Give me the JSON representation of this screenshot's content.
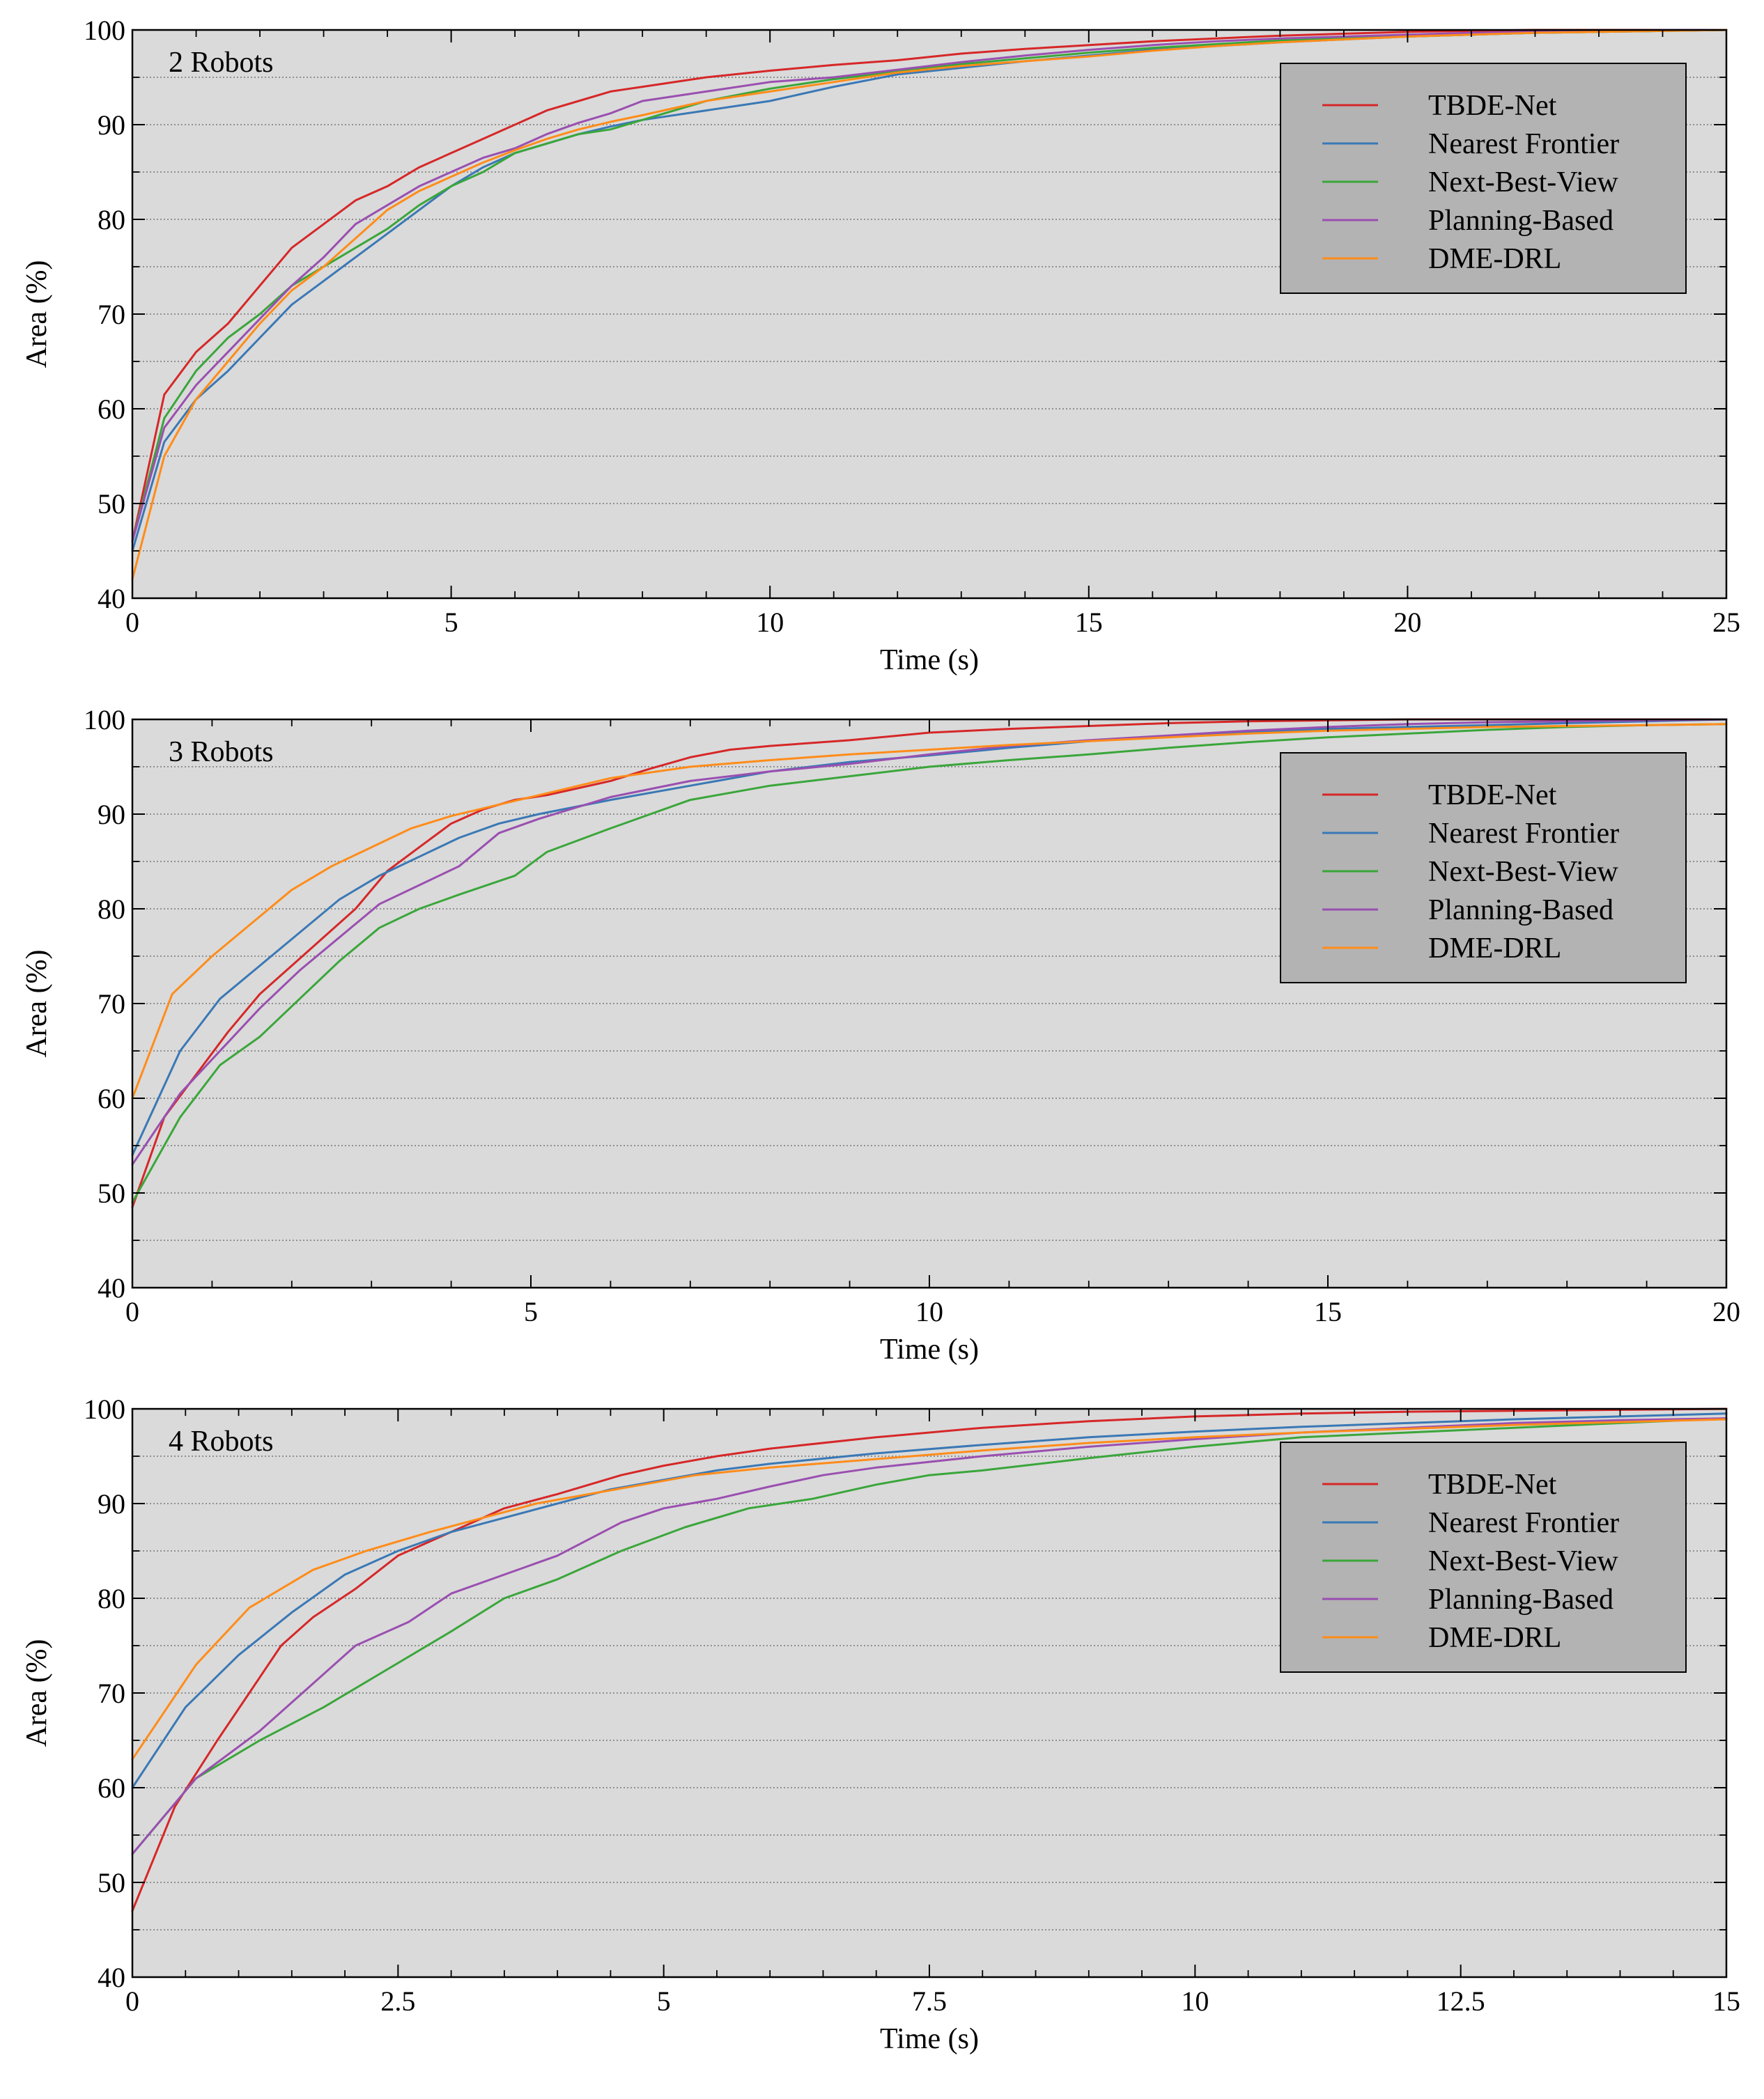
{
  "colors": {
    "TBDE-Net": "#d62728",
    "Nearest Frontier": "#3a78b5",
    "Next-Best-View": "#3aa63a",
    "Planning-Based": "#9a4fb0",
    "DME-DRL": "#ff8c1a",
    "plot_background": "#dadada",
    "legend_background": "#b3b3b3"
  },
  "chart_data": [
    {
      "type": "line",
      "title": "2 Robots",
      "xlabel": "Time (s)",
      "ylabel": "Area (%)",
      "xlim": [
        0,
        25
      ],
      "ylim": [
        40,
        100
      ],
      "xticks": [
        0,
        5,
        10,
        15,
        20,
        25
      ],
      "xtick_labels": [
        "0",
        "5",
        "10",
        "15",
        "20",
        "25"
      ],
      "yticks": [
        40,
        50,
        60,
        70,
        80,
        90,
        100
      ],
      "ytick_labels": [
        "40",
        "50",
        "60",
        "70",
        "80",
        "90",
        "100"
      ],
      "x_minor_step": 1,
      "y_minor_step": 5,
      "grid": "horizontal dotted",
      "legend_position": "top-right",
      "series": [
        {
          "name": "TBDE-Net",
          "x": [
            0,
            0.5,
            1,
            1.5,
            2,
            2.5,
            3,
            3.5,
            4,
            4.5,
            5,
            5.5,
            6,
            6.5,
            7,
            7.5,
            8,
            9,
            10,
            11,
            12,
            13,
            14,
            15,
            16,
            17,
            18,
            19,
            20,
            21,
            22,
            23,
            24,
            25
          ],
          "y": [
            46,
            61.5,
            66,
            69,
            73,
            77,
            79.5,
            82,
            83.5,
            85.5,
            87,
            88.5,
            90,
            91.5,
            92.5,
            93.5,
            94,
            95,
            95.7,
            96.3,
            96.8,
            97.5,
            98,
            98.4,
            98.8,
            99.1,
            99.4,
            99.6,
            99.8,
            99.9,
            100,
            100,
            100,
            100
          ]
        },
        {
          "name": "Nearest Frontier",
          "x": [
            0,
            0.5,
            1,
            1.5,
            2,
            2.5,
            3,
            3.5,
            4,
            4.5,
            5,
            5.5,
            6,
            6.5,
            7,
            7.5,
            8,
            9,
            10,
            11,
            12,
            13,
            14,
            15,
            16,
            17,
            18,
            19,
            20,
            21,
            22,
            23,
            24,
            25
          ],
          "y": [
            45,
            56.5,
            61,
            64,
            67.5,
            71,
            73.5,
            76,
            78.5,
            81,
            83.5,
            85.5,
            87,
            88,
            89,
            89.8,
            90.5,
            91.5,
            92.5,
            94,
            95.3,
            96,
            96.7,
            97.3,
            97.9,
            98.3,
            98.7,
            99,
            99.3,
            99.5,
            99.7,
            99.8,
            99.9,
            100
          ]
        },
        {
          "name": "Next-Best-View",
          "x": [
            0,
            0.5,
            1,
            1.5,
            2,
            2.5,
            3,
            3.5,
            4,
            4.5,
            5,
            5.5,
            6,
            6.5,
            7,
            7.5,
            8,
            9,
            10,
            11,
            12,
            13,
            14,
            15,
            16,
            17,
            18,
            19,
            20,
            21,
            22,
            23,
            24,
            25
          ],
          "y": [
            46,
            59,
            64,
            67.5,
            70,
            73,
            75,
            77,
            79,
            81.5,
            83.5,
            85,
            87,
            88,
            89,
            89.5,
            90.5,
            92.5,
            93.8,
            94.8,
            95.6,
            96.4,
            97,
            97.6,
            98.1,
            98.5,
            98.9,
            99.1,
            99.3,
            99.5,
            99.7,
            99.8,
            99.9,
            100
          ]
        },
        {
          "name": "Planning-Based",
          "x": [
            0,
            0.5,
            1,
            1.5,
            2,
            2.5,
            3,
            3.5,
            4,
            4.5,
            5,
            5.5,
            6,
            6.5,
            7,
            7.5,
            8,
            9,
            10,
            11,
            12,
            13,
            14,
            15,
            16,
            17,
            18,
            19,
            20,
            21,
            22,
            23,
            24,
            25
          ],
          "y": [
            46,
            58,
            62.5,
            66,
            69.5,
            73,
            76,
            79.5,
            81.5,
            83.5,
            85,
            86.5,
            87.5,
            89,
            90.2,
            91.2,
            92.5,
            93.5,
            94.5,
            95,
            95.8,
            96.6,
            97.3,
            97.9,
            98.4,
            98.8,
            99.1,
            99.3,
            99.5,
            99.7,
            99.8,
            99.9,
            100,
            100
          ]
        },
        {
          "name": "DME-DRL",
          "x": [
            0,
            0.5,
            1,
            1.5,
            2,
            2.5,
            3,
            3.5,
            4,
            4.5,
            5,
            5.5,
            6,
            6.5,
            7,
            7.5,
            8,
            9,
            10,
            11,
            12,
            13,
            14,
            15,
            16,
            17,
            18,
            19,
            20,
            21,
            22,
            23,
            24,
            25
          ],
          "y": [
            42,
            55,
            61,
            65,
            69,
            72.5,
            75,
            78,
            81,
            83,
            84.5,
            86,
            87.3,
            88.5,
            89.5,
            90.3,
            91,
            92.5,
            93.5,
            94.5,
            95.5,
            96.2,
            96.7,
            97.2,
            97.8,
            98.3,
            98.7,
            99,
            99.3,
            99.5,
            99.7,
            99.8,
            99.9,
            100
          ]
        }
      ]
    },
    {
      "type": "line",
      "title": "3 Robots",
      "xlabel": "Time (s)",
      "ylabel": "Area (%)",
      "xlim": [
        0,
        20
      ],
      "ylim": [
        40,
        100
      ],
      "xticks": [
        0,
        5,
        10,
        15,
        20
      ],
      "xtick_labels": [
        "0",
        "5",
        "10",
        "15",
        "20"
      ],
      "yticks": [
        40,
        50,
        60,
        70,
        80,
        90,
        100
      ],
      "ytick_labels": [
        "40",
        "50",
        "60",
        "70",
        "80",
        "90",
        "100"
      ],
      "x_minor_step": 1,
      "y_minor_step": 5,
      "grid": "horizontal dotted",
      "legend_position": "top-right",
      "series": [
        {
          "name": "TBDE-Net",
          "x": [
            0,
            0.4,
            0.8,
            1.2,
            1.6,
            2,
            2.4,
            2.8,
            3.2,
            3.6,
            4,
            4.4,
            4.8,
            5.2,
            6,
            6.5,
            7,
            7.5,
            8,
            9,
            10,
            11,
            12,
            13,
            14,
            15,
            16,
            17,
            18,
            19,
            20
          ],
          "y": [
            48.5,
            58,
            62.5,
            67,
            71,
            74,
            77,
            80,
            84,
            86.5,
            89,
            90.5,
            91.5,
            92,
            93.5,
            94.8,
            96,
            96.8,
            97.2,
            97.8,
            98.6,
            99,
            99.3,
            99.6,
            99.8,
            99.9,
            100,
            100,
            100,
            100,
            100
          ]
        },
        {
          "name": "Nearest Frontier",
          "x": [
            0,
            0.6,
            1.1,
            1.6,
            2.1,
            2.6,
            3.1,
            3.6,
            4.1,
            4.6,
            5.1,
            6,
            7,
            8,
            9,
            10,
            11,
            12,
            13,
            14,
            15,
            16,
            17,
            18,
            19,
            20
          ],
          "y": [
            54,
            65,
            70.5,
            74,
            77.5,
            81,
            83.5,
            85.5,
            87.5,
            89,
            90,
            91.5,
            93,
            94.5,
            95.5,
            96.2,
            97,
            97.7,
            98.2,
            98.6,
            99,
            99.2,
            99.4,
            99.6,
            99.8,
            100
          ]
        },
        {
          "name": "Next-Best-View",
          "x": [
            0,
            0.6,
            1.1,
            1.6,
            2.1,
            2.6,
            3.1,
            3.6,
            4.1,
            4.8,
            5.2,
            6,
            6.5,
            7,
            8,
            9,
            10,
            11,
            12,
            13,
            14,
            15,
            16,
            17,
            18,
            19,
            20
          ],
          "y": [
            49,
            58,
            63.5,
            66.5,
            70.5,
            74.5,
            78,
            80,
            81.5,
            83.5,
            86,
            88.5,
            90,
            91.5,
            93,
            94,
            95,
            95.7,
            96.3,
            97,
            97.6,
            98.1,
            98.5,
            98.9,
            99.2,
            99.4,
            99.5
          ]
        },
        {
          "name": "Planning-Based",
          "x": [
            0,
            0.6,
            1.1,
            1.6,
            2.1,
            2.6,
            3.1,
            3.6,
            4.1,
            4.6,
            5.1,
            6,
            7,
            8,
            9,
            10,
            11,
            12,
            13,
            14,
            15,
            16,
            17,
            18,
            19,
            20
          ],
          "y": [
            53,
            60.5,
            65,
            69.5,
            73.5,
            77,
            80.5,
            82.5,
            84.5,
            88,
            89.5,
            91.8,
            93.5,
            94.5,
            95.3,
            96.3,
            97.2,
            97.8,
            98.3,
            98.8,
            99.2,
            99.5,
            99.7,
            99.8,
            99.9,
            100
          ]
        },
        {
          "name": "DME-DRL",
          "x": [
            0,
            0.5,
            1,
            1.5,
            2,
            2.5,
            3,
            3.5,
            4,
            4.5,
            5,
            5.5,
            6,
            7,
            8,
            9,
            10,
            11,
            12,
            13,
            14,
            15,
            16,
            17,
            18,
            19,
            20
          ],
          "y": [
            60,
            71,
            75,
            78.5,
            82,
            84.5,
            86.5,
            88.5,
            89.8,
            90.8,
            91.8,
            92.8,
            93.8,
            95,
            95.7,
            96.3,
            96.8,
            97.3,
            97.7,
            98.1,
            98.5,
            98.8,
            99,
            99.2,
            99.3,
            99.4,
            99.5
          ]
        }
      ]
    },
    {
      "type": "line",
      "title": "4 Robots",
      "xlabel": "Time (s)",
      "ylabel": "Area (%)",
      "xlim": [
        0,
        15
      ],
      "ylim": [
        40,
        100
      ],
      "xticks": [
        0,
        2.5,
        5,
        7.5,
        10,
        12.5,
        15
      ],
      "xtick_labels": [
        "0",
        "2.5",
        "5",
        "7.5",
        "10",
        "12.5",
        "15"
      ],
      "yticks": [
        40,
        50,
        60,
        70,
        80,
        90,
        100
      ],
      "ytick_labels": [
        "40",
        "50",
        "60",
        "70",
        "80",
        "90",
        "100"
      ],
      "x_minor_step": 0.5,
      "y_minor_step": 5,
      "grid": "horizontal dotted",
      "legend_position": "top-right",
      "series": [
        {
          "name": "TBDE-Net",
          "x": [
            0,
            0.4,
            0.8,
            1.1,
            1.4,
            1.7,
            2.1,
            2.5,
            3,
            3.5,
            4,
            4.6,
            5,
            5.5,
            6,
            7,
            8,
            9,
            10,
            11,
            12,
            13,
            14,
            15
          ],
          "y": [
            47,
            58,
            65,
            70,
            75,
            78,
            81,
            84.5,
            87,
            89.5,
            91,
            93,
            94,
            95,
            95.8,
            97,
            98,
            98.7,
            99.2,
            99.5,
            99.7,
            99.8,
            99.9,
            100
          ]
        },
        {
          "name": "Nearest Frontier",
          "x": [
            0,
            0.5,
            1,
            1.5,
            2,
            2.5,
            3,
            3.5,
            4,
            4.5,
            5,
            5.5,
            6,
            7,
            8,
            9,
            10,
            11,
            12,
            13,
            14,
            15
          ],
          "y": [
            60,
            68.5,
            74,
            78.5,
            82.5,
            85,
            87,
            88.5,
            90,
            91.5,
            92.5,
            93.5,
            94.2,
            95.3,
            96.2,
            97,
            97.6,
            98.1,
            98.5,
            98.9,
            99.2,
            99.5
          ]
        },
        {
          "name": "Next-Best-View",
          "x": [
            0,
            0.6,
            1.2,
            1.8,
            2.4,
            3,
            3.5,
            4,
            4.6,
            5.2,
            5.8,
            6.4,
            7,
            7.5,
            8,
            9,
            10,
            11,
            12,
            13,
            14,
            15
          ],
          "y": [
            53,
            61,
            65,
            68.5,
            72.5,
            76.5,
            80,
            82,
            85,
            87.5,
            89.5,
            90.5,
            92,
            93,
            93.5,
            94.8,
            96,
            97,
            97.5,
            98,
            98.5,
            99
          ]
        },
        {
          "name": "Planning-Based",
          "x": [
            0,
            0.6,
            1.2,
            1.6,
            2.1,
            2.6,
            3,
            3.5,
            4,
            4.6,
            5,
            5.5,
            6,
            6.5,
            7,
            8,
            9,
            10,
            11,
            12,
            13,
            14,
            15
          ],
          "y": [
            53,
            61,
            66,
            70,
            75,
            77.5,
            80.5,
            82.5,
            84.5,
            88,
            89.5,
            90.5,
            91.8,
            93,
            93.8,
            95,
            96,
            96.8,
            97.5,
            98,
            98.5,
            98.8,
            99
          ]
        },
        {
          "name": "DME-DRL",
          "x": [
            0,
            0.6,
            1.1,
            1.7,
            2.2,
            2.8,
            3.3,
            3.8,
            4.3,
            4.8,
            5.3,
            6,
            7,
            8,
            9,
            10,
            11,
            12,
            13,
            14,
            15
          ],
          "y": [
            63,
            73,
            79,
            83,
            85,
            87,
            88.5,
            90,
            91,
            92,
            93,
            93.8,
            94.7,
            95.6,
            96.4,
            97,
            97.5,
            97.9,
            98.3,
            98.6,
            98.9
          ]
        }
      ]
    }
  ]
}
